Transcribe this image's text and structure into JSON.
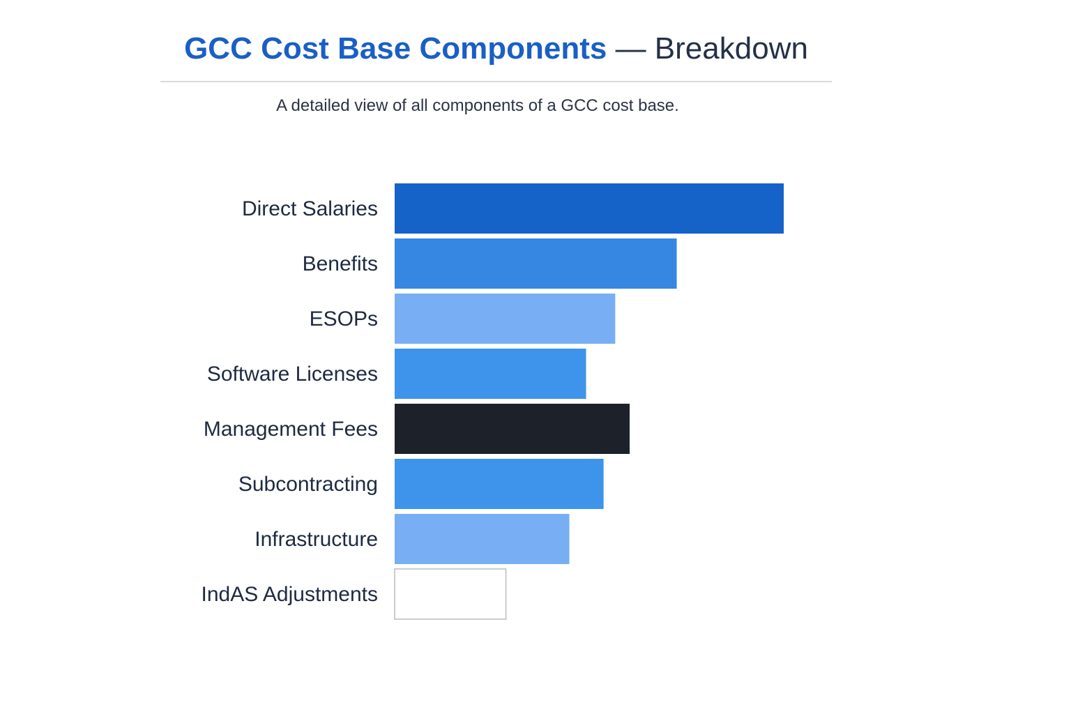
{
  "header": {
    "title_main": "GCC Cost Base Components",
    "title_rest": " — Breakdown",
    "subtitle": "A detailed view of all components of a GCC cost base."
  },
  "chart_data": {
    "type": "bar",
    "orientation": "horizontal",
    "title": "GCC Cost Base Components — Breakdown",
    "subtitle": "A detailed view of all components of a GCC cost base.",
    "xlabel": "",
    "ylabel": "",
    "xlim": [
      0,
      100
    ],
    "grid": false,
    "legend": "none",
    "categories": [
      "Direct Salaries",
      "Benefits",
      "ESOPs",
      "Software Licenses",
      "Management Fees",
      "Subcontracting",
      "Infrastructure",
      "IndAS Adjustments"
    ],
    "values": [
      100,
      72.5,
      56.7,
      49.2,
      60.4,
      53.7,
      44.9,
      28.6
    ],
    "colors": [
      "#1562c8",
      "#3587e2",
      "#78aef4",
      "#3d94ea",
      "#1c212a",
      "#3d94ea",
      "#78aef4",
      "#ffffff"
    ],
    "stroke_colors": [
      "none",
      "none",
      "none",
      "none",
      "none",
      "none",
      "none",
      "#b8bcc2"
    ]
  }
}
